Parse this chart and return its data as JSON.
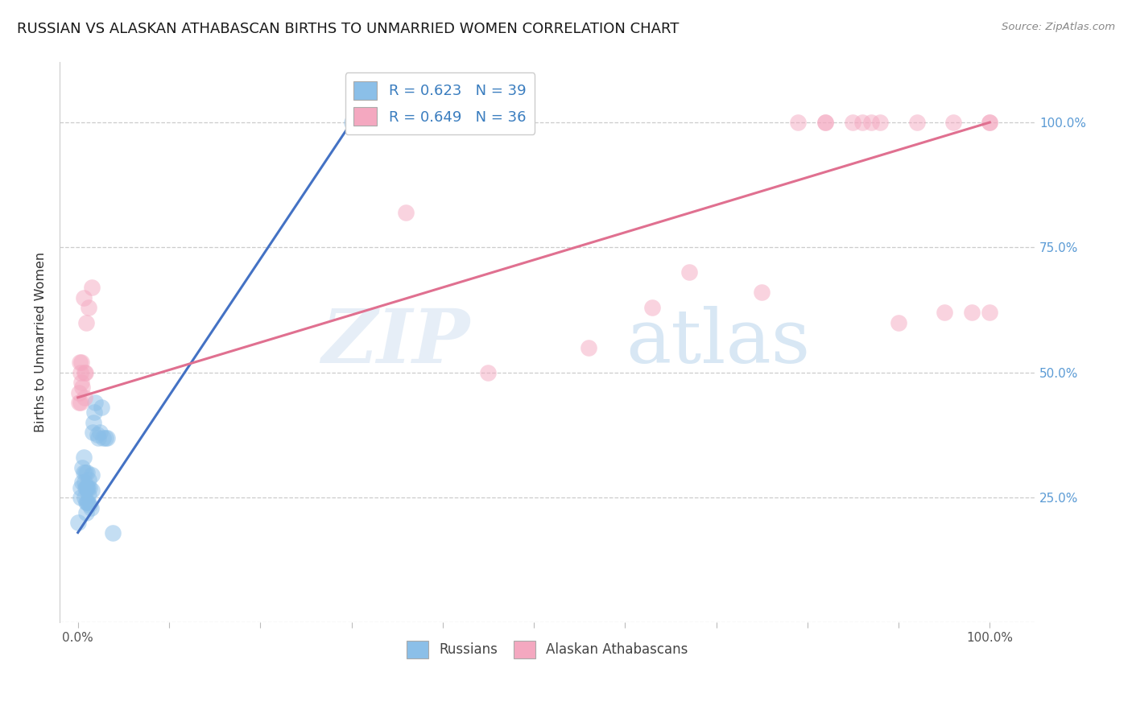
{
  "title": "RUSSIAN VS ALASKAN ATHABASCAN BIRTHS TO UNMARRIED WOMEN CORRELATION CHART",
  "source": "Source: ZipAtlas.com",
  "ylabel": "Births to Unmarried Women",
  "blue_color": "#8bbfe8",
  "pink_color": "#f4a8c0",
  "blue_line_color": "#4472c4",
  "pink_line_color": "#e07090",
  "watermark_zip": "ZIP",
  "watermark_atlas": "atlas",
  "russians_x": [
    0.0,
    0.003,
    0.003,
    0.005,
    0.005,
    0.006,
    0.006,
    0.007,
    0.007,
    0.008,
    0.008,
    0.009,
    0.009,
    0.009,
    0.01,
    0.01,
    0.01,
    0.011,
    0.011,
    0.012,
    0.012,
    0.013,
    0.013,
    0.014,
    0.015,
    0.015,
    0.016,
    0.017,
    0.018,
    0.019,
    0.021,
    0.022,
    0.024,
    0.026,
    0.028,
    0.03,
    0.032,
    0.038,
    0.3
  ],
  "russians_y": [
    0.2,
    0.27,
    0.25,
    0.31,
    0.28,
    0.33,
    0.3,
    0.28,
    0.25,
    0.3,
    0.27,
    0.27,
    0.24,
    0.22,
    0.3,
    0.27,
    0.24,
    0.27,
    0.24,
    0.285,
    0.255,
    0.27,
    0.235,
    0.23,
    0.295,
    0.265,
    0.38,
    0.4,
    0.42,
    0.44,
    0.375,
    0.37,
    0.38,
    0.43,
    0.37,
    0.37,
    0.37,
    0.18,
    1.0
  ],
  "athabascans_x": [
    0.001,
    0.001,
    0.002,
    0.003,
    0.003,
    0.004,
    0.004,
    0.005,
    0.006,
    0.007,
    0.007,
    0.008,
    0.009,
    0.012,
    0.015,
    0.36,
    0.45,
    0.56,
    0.63,
    0.67,
    0.75,
    0.79,
    0.82,
    0.82,
    0.85,
    0.86,
    0.87,
    0.88,
    0.9,
    0.92,
    0.95,
    0.96,
    0.98,
    1.0,
    1.0,
    1.0
  ],
  "athabascans_y": [
    0.46,
    0.44,
    0.52,
    0.5,
    0.44,
    0.52,
    0.48,
    0.47,
    0.65,
    0.5,
    0.45,
    0.5,
    0.6,
    0.63,
    0.67,
    0.82,
    0.5,
    0.55,
    0.63,
    0.7,
    0.66,
    1.0,
    1.0,
    1.0,
    1.0,
    1.0,
    1.0,
    1.0,
    0.6,
    1.0,
    0.62,
    1.0,
    0.62,
    0.62,
    1.0,
    1.0
  ],
  "blue_line_x0": 0.0,
  "blue_line_y0": 0.18,
  "blue_line_x1": 0.3,
  "blue_line_y1": 1.0,
  "pink_line_x0": 0.0,
  "pink_line_y0": 0.45,
  "pink_line_x1": 1.0,
  "pink_line_y1": 1.0,
  "yticks": [
    0.0,
    0.25,
    0.5,
    0.75,
    1.0
  ],
  "ytick_labels": [
    "",
    "25.0%",
    "50.0%",
    "75.0%",
    "100.0%"
  ],
  "xtick_positions": [
    0.0,
    0.1,
    0.2,
    0.3,
    0.4,
    0.5,
    0.6,
    0.7,
    0.8,
    0.9,
    1.0
  ],
  "yaxis_color": "#5b9bd5",
  "legend1_label_blue": "R = 0.623   N = 39",
  "legend1_label_pink": "R = 0.649   N = 36",
  "legend2_label_blue": "Russians",
  "legend2_label_pink": "Alaskan Athabascans"
}
